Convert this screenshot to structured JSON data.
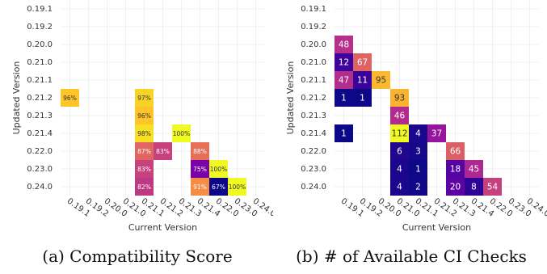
{
  "panels": [
    {
      "caption": "(a) Compatibility Score",
      "chart_data": {
        "type": "heatmap",
        "xlabel": "Current Version",
        "ylabel": "Updated Version",
        "x_categories": [
          "0.19.1",
          "0.19.2",
          "0.20.0",
          "0.21.0",
          "0.21.1",
          "0.21.2",
          "0.21.3",
          "0.21.4",
          "0.22.0",
          "0.23.0",
          "0.24.0"
        ],
        "y_categories": [
          "0.19.1",
          "0.19.2",
          "0.20.0",
          "0.21.0",
          "0.21.1",
          "0.21.2",
          "0.21.3",
          "0.21.4",
          "0.22.0",
          "0.23.0",
          "0.24.0"
        ],
        "value_format": "percent",
        "color_scale": "plasma",
        "color_range": [
          67,
          100
        ],
        "grid": true,
        "cells": [
          {
            "x": "0.19.1",
            "y": "0.21.2",
            "value": 96,
            "label": "96%"
          },
          {
            "x": "0.21.1",
            "y": "0.21.2",
            "value": 97,
            "label": "97%"
          },
          {
            "x": "0.21.1",
            "y": "0.21.3",
            "value": 96,
            "label": "96%"
          },
          {
            "x": "0.21.1",
            "y": "0.21.4",
            "value": 98,
            "label": "98%"
          },
          {
            "x": "0.21.3",
            "y": "0.21.4",
            "value": 100,
            "label": "100%"
          },
          {
            "x": "0.21.1",
            "y": "0.22.0",
            "value": 87,
            "label": "87%"
          },
          {
            "x": "0.21.2",
            "y": "0.22.0",
            "value": 83,
            "label": "83%"
          },
          {
            "x": "0.21.4",
            "y": "0.22.0",
            "value": 88,
            "label": "88%"
          },
          {
            "x": "0.21.1",
            "y": "0.23.0",
            "value": 83,
            "label": "83%"
          },
          {
            "x": "0.21.4",
            "y": "0.23.0",
            "value": 75,
            "label": "75%"
          },
          {
            "x": "0.22.0",
            "y": "0.23.0",
            "value": 100,
            "label": "100%"
          },
          {
            "x": "0.23.0",
            "y": "0.24.0",
            "value": 100,
            "label": "100%"
          },
          {
            "x": "0.21.1",
            "y": "0.24.0",
            "value": 82,
            "label": "82%"
          },
          {
            "x": "0.21.4",
            "y": "0.24.0",
            "value": 91,
            "label": "91%"
          },
          {
            "x": "0.22.0",
            "y": "0.24.0",
            "value": 67,
            "label": "67%"
          }
        ]
      }
    },
    {
      "caption": "(b) # of Available CI Checks",
      "chart_data": {
        "type": "heatmap",
        "xlabel": "Current Version",
        "ylabel": "Updated Version",
        "x_categories": [
          "0.19.1",
          "0.19.2",
          "0.20.0",
          "0.21.0",
          "0.21.1",
          "0.21.2",
          "0.21.3",
          "0.21.4",
          "0.22.0",
          "0.23.0",
          "0.24.0"
        ],
        "y_categories": [
          "0.19.1",
          "0.19.2",
          "0.20.0",
          "0.21.0",
          "0.21.1",
          "0.21.2",
          "0.21.3",
          "0.21.4",
          "0.22.0",
          "0.23.0",
          "0.24.0"
        ],
        "value_format": "count",
        "color_scale": "plasma",
        "color_range": [
          1,
          112
        ],
        "grid": true,
        "cells": [
          {
            "x": "0.19.1",
            "y": "0.20.0",
            "value": 48,
            "label": "48"
          },
          {
            "x": "0.19.1",
            "y": "0.21.0",
            "value": 12,
            "label": "12"
          },
          {
            "x": "0.19.2",
            "y": "0.21.0",
            "value": 67,
            "label": "67"
          },
          {
            "x": "0.19.1",
            "y": "0.21.1",
            "value": 47,
            "label": "47"
          },
          {
            "x": "0.19.2",
            "y": "0.21.1",
            "value": 11,
            "label": "11"
          },
          {
            "x": "0.20.0",
            "y": "0.21.1",
            "value": 95,
            "label": "95"
          },
          {
            "x": "0.19.1",
            "y": "0.21.2",
            "value": 1,
            "label": "1"
          },
          {
            "x": "0.19.2",
            "y": "0.21.2",
            "value": 1,
            "label": "1"
          },
          {
            "x": "0.21.0",
            "y": "0.21.2",
            "value": 93,
            "label": "93"
          },
          {
            "x": "0.21.0",
            "y": "0.21.3",
            "value": 46,
            "label": "46"
          },
          {
            "x": "0.19.1",
            "y": "0.21.4",
            "value": 1,
            "label": "1"
          },
          {
            "x": "0.21.0",
            "y": "0.21.4",
            "value": 112,
            "label": "112"
          },
          {
            "x": "0.21.1",
            "y": "0.21.4",
            "value": 4,
            "label": "4"
          },
          {
            "x": "0.21.2",
            "y": "0.21.4",
            "value": 37,
            "label": "37"
          },
          {
            "x": "0.21.0",
            "y": "0.22.0",
            "value": 6,
            "label": "6"
          },
          {
            "x": "0.21.1",
            "y": "0.22.0",
            "value": 3,
            "label": "3"
          },
          {
            "x": "0.21.3",
            "y": "0.22.0",
            "value": 66,
            "label": "66"
          },
          {
            "x": "0.21.0",
            "y": "0.23.0",
            "value": 4,
            "label": "4"
          },
          {
            "x": "0.21.1",
            "y": "0.23.0",
            "value": 1,
            "label": "1"
          },
          {
            "x": "0.21.3",
            "y": "0.23.0",
            "value": 18,
            "label": "18"
          },
          {
            "x": "0.21.4",
            "y": "0.23.0",
            "value": 45,
            "label": "45"
          },
          {
            "x": "0.21.0",
            "y": "0.24.0",
            "value": 4,
            "label": "4"
          },
          {
            "x": "0.21.1",
            "y": "0.24.0",
            "value": 2,
            "label": "2"
          },
          {
            "x": "0.21.3",
            "y": "0.24.0",
            "value": 20,
            "label": "20"
          },
          {
            "x": "0.21.4",
            "y": "0.24.0",
            "value": 8,
            "label": "8"
          },
          {
            "x": "0.22.0",
            "y": "0.24.0",
            "value": 54,
            "label": "54"
          }
        ]
      }
    }
  ]
}
